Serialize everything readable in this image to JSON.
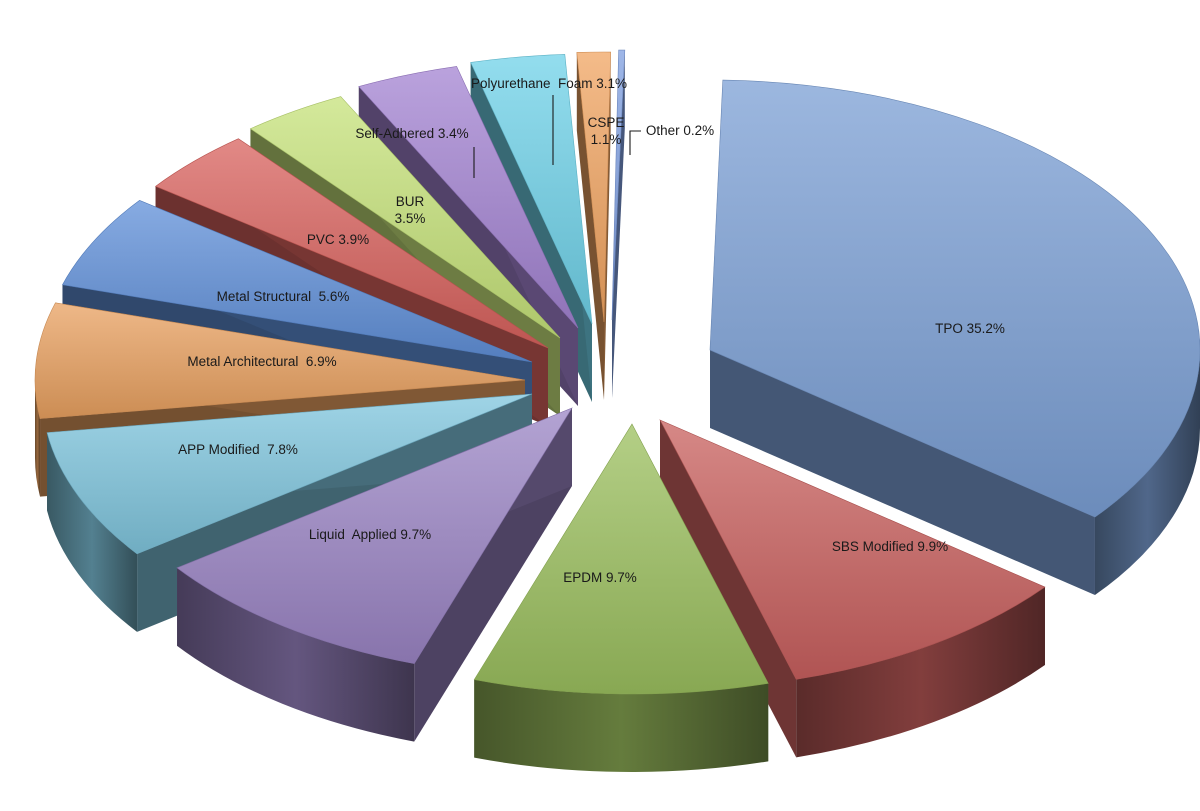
{
  "chart_data": {
    "type": "pie",
    "style": "3d-exploded",
    "title": "",
    "slices": [
      {
        "name": "TPO",
        "label_lines": [
          "TPO 35.2%"
        ],
        "value": 35.2,
        "color": "#7b9fd4"
      },
      {
        "name": "SBS Modified",
        "label_lines": [
          "SBS Modified 9.9%"
        ],
        "value": 9.9,
        "color": "#c8605e"
      },
      {
        "name": "EPDM",
        "label_lines": [
          "EPDM 9.7%"
        ],
        "value": 9.7,
        "color": "#9bbf5e"
      },
      {
        "name": "Liquid Applied",
        "label_lines": [
          "Liquid  Applied 9.7%"
        ],
        "value": 9.7,
        "color": "#9a84c4"
      },
      {
        "name": "APP Modified",
        "label_lines": [
          "APP Modified  7.8%"
        ],
        "value": 7.8,
        "color": "#7fc5dd"
      },
      {
        "name": "Metal Architectural",
        "label_lines": [
          "Metal Architectural  6.9%"
        ],
        "value": 6.9,
        "color": "#e8a060"
      },
      {
        "name": "Metal Structural",
        "label_lines": [
          "Metal Structural  5.6%"
        ],
        "value": 5.6,
        "color": "#5f8fd8"
      },
      {
        "name": "PVC",
        "label_lines": [
          "PVC 3.9%"
        ],
        "value": 3.9,
        "color": "#d8625d"
      },
      {
        "name": "BUR",
        "label_lines": [
          "BUR",
          "3.5%"
        ],
        "value": 3.5,
        "color": "#c6e27a"
      },
      {
        "name": "Self-Adhered",
        "label_lines": [
          "Self-Adhered 3.4%"
        ],
        "value": 3.4,
        "color": "#a383d1"
      },
      {
        "name": "Polyurethane Foam",
        "label_lines": [
          "Polyurethane  Foam 3.1%"
        ],
        "value": 3.1,
        "color": "#6fd1e8"
      },
      {
        "name": "CSPE",
        "label_lines": [
          "CSPE",
          "1.1%"
        ],
        "value": 1.1,
        "color": "#f0a461"
      },
      {
        "name": "Other",
        "label_lines": [
          "Other 0.2%"
        ],
        "value": 0.2,
        "color": "#7f9fe0"
      }
    ]
  }
}
